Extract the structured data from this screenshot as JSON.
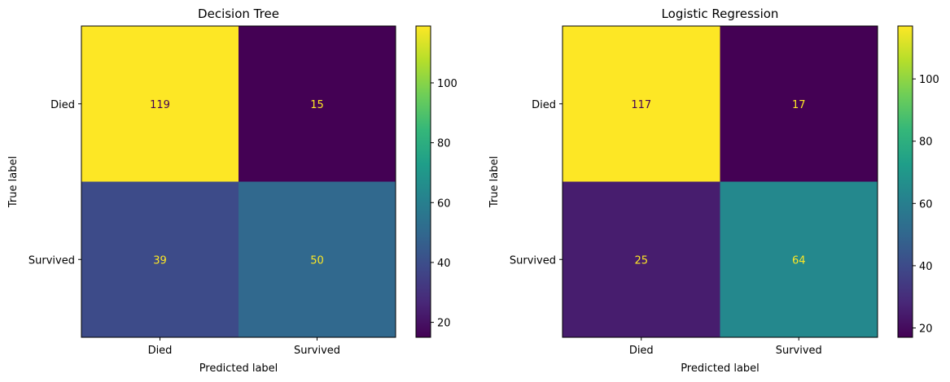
{
  "chart_data": [
    {
      "type": "heatmap",
      "title": "Decision Tree",
      "xlabel": "Predicted label",
      "ylabel": "True label",
      "x_categories": [
        "Died",
        "Survived"
      ],
      "y_categories": [
        "Died",
        "Survived"
      ],
      "matrix": [
        [
          119,
          15
        ],
        [
          39,
          50
        ]
      ],
      "colormap": "viridis",
      "colorbar": {
        "range": [
          15,
          119
        ],
        "ticks": [
          "20",
          "40",
          "60",
          "80",
          "100"
        ]
      }
    },
    {
      "type": "heatmap",
      "title": "Logistic Regression",
      "xlabel": "Predicted label",
      "ylabel": "True label",
      "x_categories": [
        "Died",
        "Survived"
      ],
      "y_categories": [
        "Died",
        "Survived"
      ],
      "matrix": [
        [
          117,
          17
        ],
        [
          25,
          64
        ]
      ],
      "colormap": "viridis",
      "colorbar": {
        "range": [
          17,
          117
        ],
        "ticks": [
          "20",
          "40",
          "60",
          "80",
          "100"
        ]
      }
    }
  ],
  "colors": {
    "viridis_stops": [
      "#440154",
      "#482878",
      "#3e4989",
      "#31688e",
      "#26828e",
      "#1f9e89",
      "#35b779",
      "#6ece58",
      "#b5de2b",
      "#fde725"
    ],
    "label_on_dark": "#fde725",
    "label_on_light": "#440154",
    "axis": "#000000"
  }
}
